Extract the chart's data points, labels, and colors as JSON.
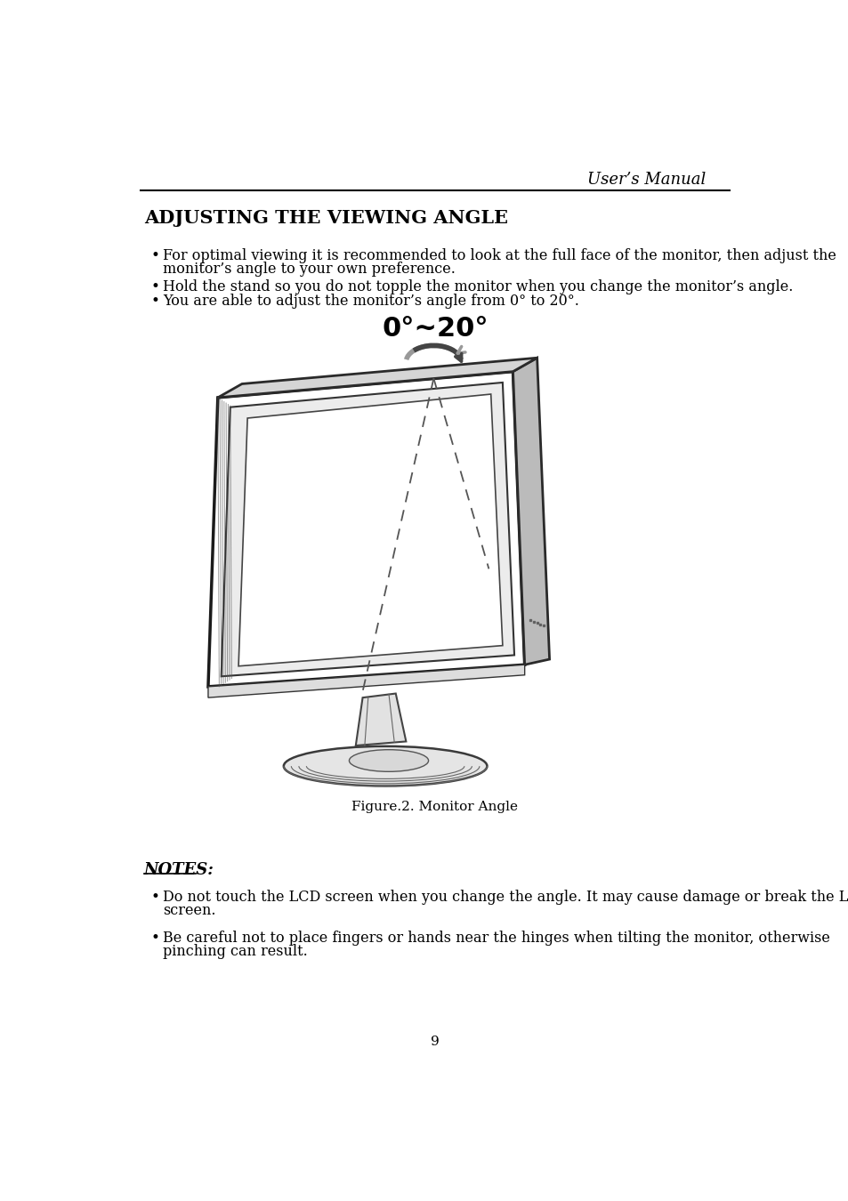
{
  "page_title": "User’s Manual",
  "section_title": "ADJUSTING THE VIEWING ANGLE",
  "bullet_points": [
    "For optimal viewing it is recommended to look at the full face of the monitor, then adjust the monitor’s angle to your own preference.",
    "Hold the stand so you do not topple the monitor when you change the monitor’s angle.",
    "You are able to adjust the monitor’s angle from 0° to 20°."
  ],
  "angle_label": "0°~20°",
  "figure_caption": "Figure.2. Monitor Angle",
  "notes_title": "NOTES:",
  "notes_bullets": [
    "Do not touch the LCD screen when you change the angle. It may cause damage or break the LCD screen.",
    "Be careful not to place fingers or hands near the hinges when tilting the monitor, otherwise pinching can result."
  ],
  "page_number": "9",
  "bg_color": "#ffffff",
  "text_color": "#000000",
  "line_color": "#000000"
}
